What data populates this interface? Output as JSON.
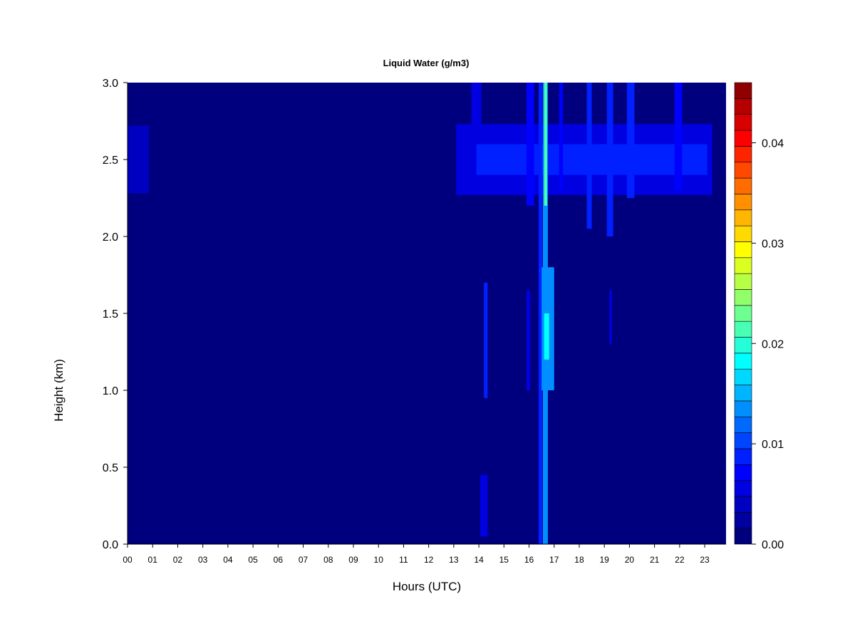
{
  "chart_data": {
    "type": "heatmap",
    "title": "Liquid Water (g/m3)",
    "xlabel": "Hours (UTC)",
    "ylabel": "Height (km)",
    "x_unit": "hours",
    "xlim": [
      0,
      23.85
    ],
    "ylim": [
      0,
      3.0
    ],
    "x_ticks": [
      "00",
      "01",
      "02",
      "03",
      "04",
      "05",
      "06",
      "07",
      "08",
      "09",
      "10",
      "11",
      "12",
      "13",
      "14",
      "15",
      "16",
      "17",
      "18",
      "19",
      "20",
      "21",
      "22",
      "23"
    ],
    "y_ticks": [
      "0.0",
      "0.5",
      "1.0",
      "1.5",
      "2.0",
      "2.5",
      "3.0"
    ],
    "y_tick_values": [
      0,
      0.5,
      1.0,
      1.5,
      2.0,
      2.5,
      3.0
    ],
    "colorbar": {
      "vmin": 0.0,
      "vmax": 0.046,
      "tick_labels": [
        "0.00",
        "0.01",
        "0.02",
        "0.03",
        "0.04"
      ],
      "tick_values": [
        0.0,
        0.01,
        0.02,
        0.03,
        0.04
      ],
      "colors": [
        "#00007f",
        "#0000a0",
        "#0000c0",
        "#0000e0",
        "#0000ff",
        "#0020ff",
        "#0045ff",
        "#006aff",
        "#008fff",
        "#00b4ff",
        "#00d9ff",
        "#00ffff",
        "#24ffd9",
        "#48ffb4",
        "#6dff8f",
        "#91ff6a",
        "#b6ff45",
        "#daff20",
        "#ffff00",
        "#ffda00",
        "#ffb600",
        "#ff9100",
        "#ff6d00",
        "#ff4800",
        "#ff2400",
        "#ff0000",
        "#d90000",
        "#b60000",
        "#910000"
      ]
    },
    "background_value": 0.0,
    "features": [
      {
        "kind": "layer",
        "x_start": 0.0,
        "x_end": 0.85,
        "y_start": 2.28,
        "y_end": 2.72,
        "value": 0.004
      },
      {
        "kind": "layer",
        "x_start": 13.1,
        "x_end": 23.3,
        "y_start": 2.27,
        "y_end": 2.73,
        "value": 0.0055
      },
      {
        "kind": "layer",
        "x_start": 13.9,
        "x_end": 23.1,
        "y_start": 2.4,
        "y_end": 2.6,
        "value": 0.0095
      },
      {
        "kind": "column",
        "x_start": 16.38,
        "x_end": 16.52,
        "y_start": 0.0,
        "y_end": 3.0,
        "value": 0.009
      },
      {
        "kind": "column",
        "x_start": 16.55,
        "x_end": 16.75,
        "y_start": 0.0,
        "y_end": 3.0,
        "value": 0.014
      },
      {
        "kind": "column",
        "x_start": 16.6,
        "x_end": 16.72,
        "y_start": 2.2,
        "y_end": 3.0,
        "value": 0.021
      },
      {
        "kind": "column",
        "x_start": 16.5,
        "x_end": 17.0,
        "y_start": 1.0,
        "y_end": 1.8,
        "value": 0.013
      },
      {
        "kind": "column",
        "x_start": 16.6,
        "x_end": 16.8,
        "y_start": 1.2,
        "y_end": 1.5,
        "value": 0.019
      },
      {
        "kind": "column",
        "x_start": 14.2,
        "x_end": 14.35,
        "y_start": 0.95,
        "y_end": 1.7,
        "value": 0.008
      },
      {
        "kind": "column",
        "x_start": 14.05,
        "x_end": 14.35,
        "y_start": 0.05,
        "y_end": 0.45,
        "value": 0.006
      },
      {
        "kind": "column",
        "x_start": 15.9,
        "x_end": 16.05,
        "y_start": 1.0,
        "y_end": 1.65,
        "value": 0.006
      },
      {
        "kind": "column",
        "x_start": 15.9,
        "x_end": 16.2,
        "y_start": 2.2,
        "y_end": 3.0,
        "value": 0.007
      },
      {
        "kind": "column",
        "x_start": 17.2,
        "x_end": 17.35,
        "y_start": 2.3,
        "y_end": 3.0,
        "value": 0.007
      },
      {
        "kind": "column",
        "x_start": 18.3,
        "x_end": 18.5,
        "y_start": 2.05,
        "y_end": 3.0,
        "value": 0.008
      },
      {
        "kind": "column",
        "x_start": 19.1,
        "x_end": 19.35,
        "y_start": 2.0,
        "y_end": 3.0,
        "value": 0.009
      },
      {
        "kind": "column",
        "x_start": 19.9,
        "x_end": 20.2,
        "y_start": 2.25,
        "y_end": 3.0,
        "value": 0.008
      },
      {
        "kind": "column",
        "x_start": 21.8,
        "x_end": 22.1,
        "y_start": 2.3,
        "y_end": 3.0,
        "value": 0.007
      },
      {
        "kind": "column",
        "x_start": 13.7,
        "x_end": 14.1,
        "y_start": 2.7,
        "y_end": 3.0,
        "value": 0.006
      },
      {
        "kind": "column",
        "x_start": 19.2,
        "x_end": 19.3,
        "y_start": 1.3,
        "y_end": 1.65,
        "value": 0.006
      }
    ]
  }
}
